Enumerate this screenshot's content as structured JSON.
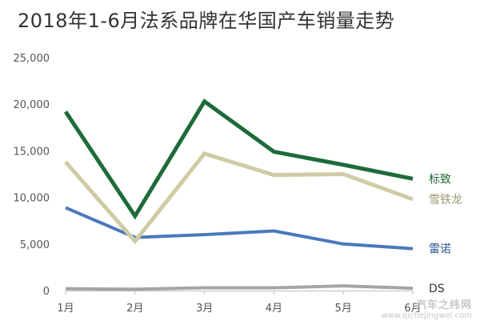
{
  "title": "2018年1-6月法系品牌在华国产车销量走势",
  "watermark": {
    "main": "汽车之纬网",
    "sub": "www.qichejingwei.com"
  },
  "chart_data": {
    "type": "line",
    "title": "2018年1-6月法系品牌在华国产车销量走势",
    "xlabel": "",
    "ylabel": "",
    "categories": [
      "1月",
      "2月",
      "3月",
      "4月",
      "5月",
      "6月"
    ],
    "ylim": [
      0,
      25000
    ],
    "yticks": [
      0,
      5000,
      10000,
      15000,
      20000,
      25000
    ],
    "ytick_labels": [
      "0",
      "5,000",
      "10,000",
      "15,000",
      "20,000",
      "25,000"
    ],
    "grid": false,
    "legend": "inline labels at line ends (right)",
    "series": [
      {
        "name": "标致",
        "values": [
          19200,
          8000,
          20300,
          14900,
          13500,
          12000
        ],
        "color": "#1e6b3a"
      },
      {
        "name": "雪铁龙",
        "values": [
          13800,
          5300,
          14700,
          12400,
          12500,
          9800
        ],
        "color": "#cfcba4"
      },
      {
        "name": "雷诺",
        "values": [
          8900,
          5700,
          6000,
          6400,
          5000,
          4500
        ],
        "color": "#4a78bd"
      },
      {
        "name": "DS",
        "values": [
          200,
          150,
          300,
          300,
          500,
          250
        ],
        "color": "#a5a5a5"
      }
    ]
  }
}
